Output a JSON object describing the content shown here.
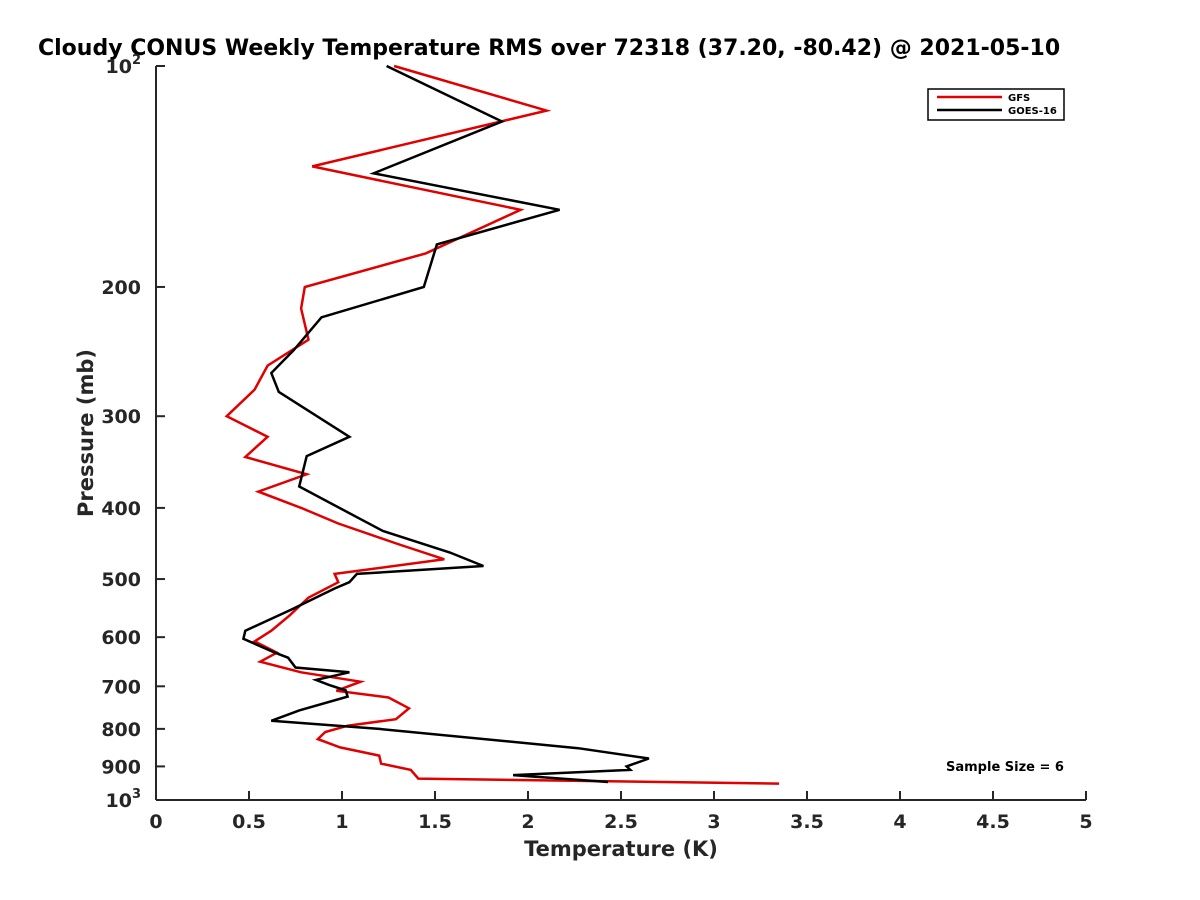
{
  "chart_data": {
    "type": "line",
    "title": "Cloudy CONUS Weekly Temperature RMS over 72318 (37.20, -80.42) @ 2021-05-10",
    "xlabel": "Temperature (K)",
    "ylabel": "Pressure (mb)",
    "xlim": [
      0,
      5
    ],
    "ylim": [
      100,
      1000
    ],
    "y_scale": "log",
    "y_reversed": true,
    "grid": false,
    "legend_position": "top-right",
    "x_ticks": [
      {
        "value": 0,
        "label": "0"
      },
      {
        "value": 0.5,
        "label": "0.5"
      },
      {
        "value": 1,
        "label": "1"
      },
      {
        "value": 1.5,
        "label": "1.5"
      },
      {
        "value": 2,
        "label": "2"
      },
      {
        "value": 2.5,
        "label": "2.5"
      },
      {
        "value": 3,
        "label": "3"
      },
      {
        "value": 3.5,
        "label": "3.5"
      },
      {
        "value": 4,
        "label": "4"
      },
      {
        "value": 4.5,
        "label": "4.5"
      },
      {
        "value": 5,
        "label": "5"
      }
    ],
    "y_ticks": [
      {
        "value": 100,
        "base": "10",
        "exp": "2"
      },
      {
        "value": 200,
        "label": "200"
      },
      {
        "value": 300,
        "label": "300"
      },
      {
        "value": 400,
        "label": "400"
      },
      {
        "value": 500,
        "label": "500"
      },
      {
        "value": 600,
        "label": "600"
      },
      {
        "value": 700,
        "label": "700"
      },
      {
        "value": 800,
        "label": "800"
      },
      {
        "value": 900,
        "label": "900"
      },
      {
        "value": 1000,
        "base": "10",
        "exp": "3"
      }
    ],
    "annotation": "Sample Size = 6",
    "series": [
      {
        "name": "GFS",
        "color": "#e00000",
        "points": [
          [
            1.28,
            100
          ],
          [
            2.1,
            115
          ],
          [
            0.84,
            137
          ],
          [
            1.96,
            157
          ],
          [
            1.45,
            180
          ],
          [
            0.8,
            200
          ],
          [
            0.78,
            214
          ],
          [
            0.82,
            236
          ],
          [
            0.6,
            256
          ],
          [
            0.53,
            276
          ],
          [
            0.38,
            300
          ],
          [
            0.6,
            320
          ],
          [
            0.48,
            341
          ],
          [
            0.81,
            360
          ],
          [
            0.55,
            380
          ],
          [
            0.78,
            400
          ],
          [
            0.98,
            420
          ],
          [
            1.3,
            448
          ],
          [
            1.55,
            470
          ],
          [
            0.96,
            492
          ],
          [
            0.98,
            505
          ],
          [
            0.82,
            530
          ],
          [
            0.72,
            560
          ],
          [
            0.62,
            588
          ],
          [
            0.53,
            608
          ],
          [
            0.65,
            630
          ],
          [
            0.56,
            648
          ],
          [
            0.78,
            670
          ],
          [
            1.1,
            690
          ],
          [
            0.97,
            710
          ],
          [
            1.25,
            725
          ],
          [
            1.36,
            750
          ],
          [
            1.29,
            776
          ],
          [
            1.03,
            792
          ],
          [
            0.91,
            808
          ],
          [
            0.87,
            826
          ],
          [
            0.99,
            848
          ],
          [
            1.2,
            870
          ],
          [
            1.21,
            892
          ],
          [
            1.37,
            910
          ],
          [
            1.41,
            935
          ],
          [
            3.35,
            950
          ]
        ]
      },
      {
        "name": "GOES-16",
        "color": "#000000",
        "points": [
          [
            1.24,
            100
          ],
          [
            1.86,
            119
          ],
          [
            1.17,
            140
          ],
          [
            2.17,
            157
          ],
          [
            1.51,
            175
          ],
          [
            1.44,
            200
          ],
          [
            0.89,
            220
          ],
          [
            0.74,
            244
          ],
          [
            0.62,
            262
          ],
          [
            0.66,
            278
          ],
          [
            1.04,
            320
          ],
          [
            0.81,
            340
          ],
          [
            0.77,
            374
          ],
          [
            1.22,
            430
          ],
          [
            1.58,
            460
          ],
          [
            1.76,
            480
          ],
          [
            1.08,
            492
          ],
          [
            1.04,
            505
          ],
          [
            0.96,
            515
          ],
          [
            0.73,
            550
          ],
          [
            0.48,
            588
          ],
          [
            0.47,
            603
          ],
          [
            0.64,
            630
          ],
          [
            0.71,
            640
          ],
          [
            0.75,
            660
          ],
          [
            1.04,
            670
          ],
          [
            0.86,
            686
          ],
          [
            0.93,
            697
          ],
          [
            1.02,
            709
          ],
          [
            1.03,
            723
          ],
          [
            0.77,
            755
          ],
          [
            0.62,
            780
          ],
          [
            1.2,
            800
          ],
          [
            2.27,
            850
          ],
          [
            2.65,
            878
          ],
          [
            2.53,
            900
          ],
          [
            2.55,
            910
          ],
          [
            1.92,
            925
          ],
          [
            2.43,
            945
          ]
        ]
      }
    ]
  }
}
